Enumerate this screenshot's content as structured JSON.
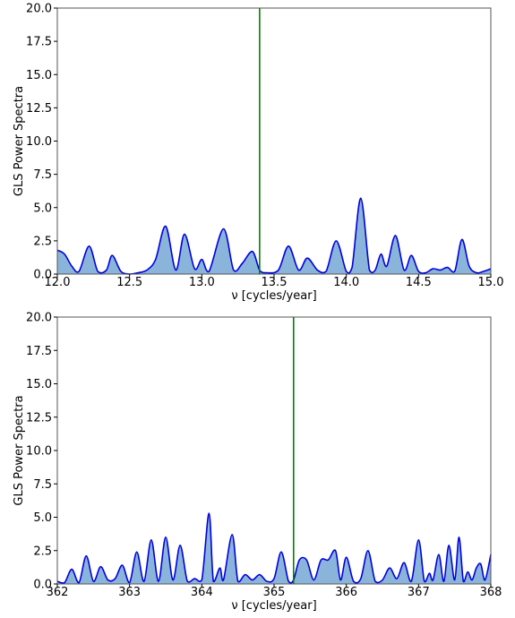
{
  "chart_data": [
    {
      "type": "area",
      "xlabel": "ν [cycles/year]",
      "ylabel": "GLS Power Spectra",
      "xlim": [
        12.0,
        15.0
      ],
      "ylim": [
        0.0,
        20.0
      ],
      "xticks": [
        12.0,
        12.5,
        13.0,
        13.5,
        14.0,
        14.5,
        15.0
      ],
      "xtick_labels": [
        "12.0",
        "12.5",
        "13.0",
        "13.5",
        "14.0",
        "14.5",
        "15.0"
      ],
      "yticks": [
        0.0,
        2.5,
        5.0,
        7.5,
        10.0,
        12.5,
        15.0,
        17.5,
        20.0
      ],
      "ytick_labels": [
        "0.0",
        "2.5",
        "5.0",
        "7.5",
        "10.0",
        "12.5",
        "15.0",
        "17.5",
        "20.0"
      ],
      "grid": false,
      "vline_x": 13.4,
      "series": [
        {
          "values_x": [
            12.0,
            12.05,
            12.1,
            12.15,
            12.22,
            12.28,
            12.34,
            12.38,
            12.44,
            12.5,
            12.56,
            12.62,
            12.68,
            12.75,
            12.82,
            12.88,
            12.95,
            13.0,
            13.05,
            13.15,
            13.22,
            13.28,
            13.35,
            13.4,
            13.45,
            13.53,
            13.6,
            13.67,
            13.73,
            13.8,
            13.86,
            13.93,
            14.0,
            14.04,
            14.1,
            14.16,
            14.2,
            14.24,
            14.28,
            14.34,
            14.4,
            14.45,
            14.5,
            14.55,
            14.6,
            14.65,
            14.7,
            14.75,
            14.8,
            14.85,
            14.9,
            14.95,
            15.0
          ],
          "values_y": [
            1.8,
            1.5,
            0.6,
            0.2,
            2.1,
            0.2,
            0.3,
            1.4,
            0.2,
            0.0,
            0.1,
            0.3,
            1.1,
            3.6,
            0.3,
            3.0,
            0.4,
            1.1,
            0.2,
            3.4,
            0.3,
            0.8,
            1.7,
            0.3,
            0.1,
            0.3,
            2.1,
            0.3,
            1.2,
            0.3,
            0.2,
            2.5,
            0.2,
            0.5,
            5.7,
            0.3,
            0.3,
            1.5,
            0.6,
            2.9,
            0.3,
            1.4,
            0.2,
            0.1,
            0.4,
            0.3,
            0.5,
            0.2,
            2.6,
            0.6,
            0.1,
            0.2,
            0.4
          ]
        }
      ]
    },
    {
      "type": "area",
      "xlabel": "ν [cycles/year]",
      "ylabel": "GLS Power Spectra",
      "xlim": [
        362.0,
        368.0
      ],
      "ylim": [
        0.0,
        20.0
      ],
      "xticks": [
        362,
        363,
        364,
        365,
        366,
        367,
        368
      ],
      "xtick_labels": [
        "362",
        "363",
        "364",
        "365",
        "366",
        "367",
        "368"
      ],
      "yticks": [
        0.0,
        2.5,
        5.0,
        7.5,
        10.0,
        12.5,
        15.0,
        17.5,
        20.0
      ],
      "ytick_labels": [
        "0.0",
        "2.5",
        "5.0",
        "7.5",
        "10.0",
        "12.5",
        "15.0",
        "17.5",
        "20.0"
      ],
      "grid": false,
      "vline_x": 365.27,
      "series": [
        {
          "values_x": [
            362.0,
            362.1,
            362.2,
            362.3,
            362.4,
            362.5,
            362.6,
            362.7,
            362.8,
            362.9,
            363.0,
            363.1,
            363.2,
            363.3,
            363.4,
            363.5,
            363.6,
            363.7,
            363.8,
            363.9,
            364.0,
            364.1,
            364.16,
            364.25,
            364.3,
            364.42,
            364.5,
            364.6,
            364.7,
            364.8,
            364.9,
            365.0,
            365.1,
            365.2,
            365.27,
            365.35,
            365.45,
            365.55,
            365.65,
            365.75,
            365.85,
            365.92,
            366.0,
            366.1,
            366.2,
            366.3,
            366.4,
            366.5,
            366.6,
            366.7,
            366.8,
            366.9,
            367.0,
            367.08,
            367.15,
            367.2,
            367.28,
            367.35,
            367.42,
            367.5,
            367.56,
            367.62,
            367.68,
            367.74,
            367.8,
            367.86,
            367.92,
            368.0
          ],
          "values_y": [
            0.2,
            0.1,
            1.1,
            0.1,
            2.1,
            0.2,
            1.3,
            0.3,
            0.4,
            1.4,
            0.1,
            2.4,
            0.2,
            3.3,
            0.2,
            3.5,
            0.3,
            2.9,
            0.2,
            0.4,
            0.3,
            5.3,
            0.2,
            1.2,
            0.3,
            3.7,
            0.2,
            0.7,
            0.3,
            0.7,
            0.2,
            0.4,
            2.4,
            0.2,
            0.3,
            1.8,
            1.8,
            0.3,
            1.8,
            1.8,
            2.5,
            0.3,
            2.0,
            0.2,
            0.4,
            2.5,
            0.2,
            0.3,
            1.2,
            0.4,
            1.6,
            0.2,
            3.3,
            0.2,
            0.8,
            0.3,
            2.2,
            0.2,
            2.9,
            0.3,
            3.5,
            0.2,
            0.9,
            0.3,
            1.2,
            1.5,
            0.3,
            2.2
          ]
        }
      ]
    }
  ],
  "colors": {
    "line": "#0000dd",
    "fill": "#8ab4da",
    "vline": "#008000",
    "axes": "#555555"
  }
}
